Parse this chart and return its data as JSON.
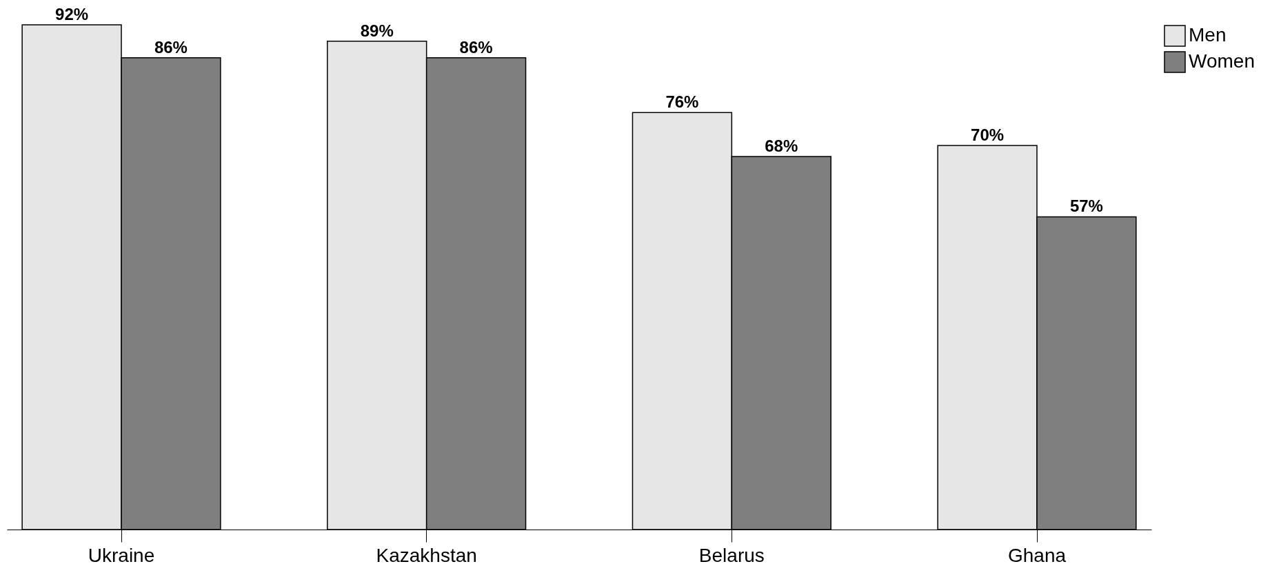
{
  "chart_data": {
    "type": "bar",
    "categories": [
      "Ukraine",
      "Kazakhstan",
      "Belarus",
      "Ghana"
    ],
    "series": [
      {
        "name": "Men",
        "color": "#e6e6e6",
        "values": [
          92,
          89,
          76,
          70
        ],
        "value_labels": [
          "92%",
          "89%",
          "76%",
          "70%"
        ]
      },
      {
        "name": "Women",
        "color": "#7f7f7f",
        "values": [
          86,
          86,
          68,
          57
        ],
        "value_labels": [
          "86%",
          "86%",
          "68%",
          "57%"
        ]
      }
    ],
    "legend": "right",
    "grid": false
  }
}
